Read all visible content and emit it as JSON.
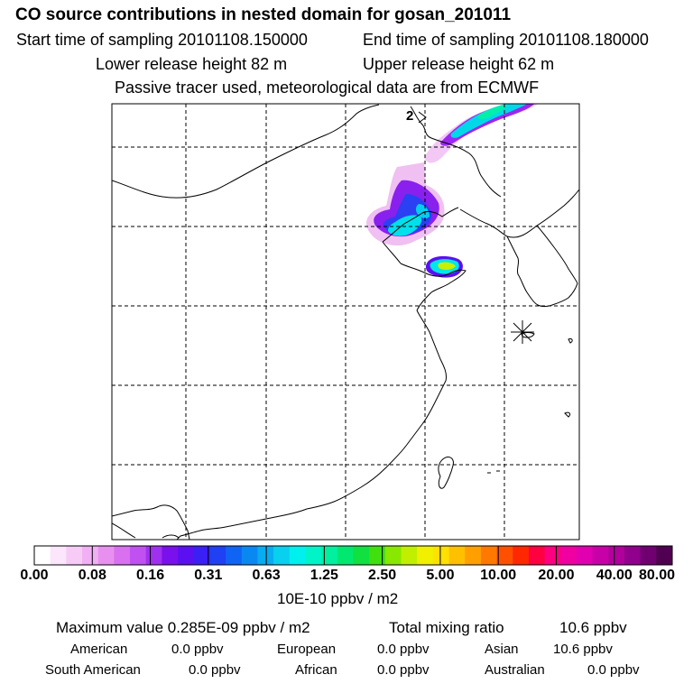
{
  "header": {
    "title": "CO  source contributions in nested domain for gosan_201011",
    "start_label": "Start time of sampling 20101108.150000",
    "end_label": "End time of sampling 20101108.180000",
    "lower_release_label": "Lower release height   82 m",
    "upper_release_label": "Upper release height   62 m",
    "tracer_label": "Passive tracer used, meteorological data are from ECMWF"
  },
  "map": {
    "contour_label": "2",
    "station_marker": "receptor-asterisk-icon"
  },
  "colorbar": {
    "colors": [
      "#ffffff",
      "#fbe6fb",
      "#f6ccf7",
      "#f0b0f3",
      "#e890f0",
      "#d870ef",
      "#c050f0",
      "#a030f0",
      "#7a10ec",
      "#5a10f0",
      "#3a20f4",
      "#2040f4",
      "#1064f4",
      "#0a88f2",
      "#08acf0",
      "#08d0ee",
      "#00f0ee",
      "#00f4c8",
      "#00f0a0",
      "#00e870",
      "#10e040",
      "#40e010",
      "#88e800",
      "#c0f000",
      "#f0f000",
      "#ffe000",
      "#ffc000",
      "#ffa000",
      "#ff7800",
      "#ff5000",
      "#ff2800",
      "#ff0040",
      "#ff0080",
      "#f000a0",
      "#e000b0",
      "#c800a8",
      "#b0009c",
      "#90008c",
      "#700070",
      "#500050"
    ],
    "ticks": [
      "0.00",
      "0.08",
      "0.16",
      "0.31",
      "0.63",
      "1.25",
      "2.50",
      "5.00",
      "10.00",
      "20.00",
      "40.00",
      "80.00"
    ],
    "unit": "10E-10 ppbv / m2"
  },
  "stats": {
    "max_label": "Maximum value  0.285E-09 ppbv / m2",
    "total_label": "Total mixing ratio",
    "total_value": "10.6 ppbv",
    "regions": [
      {
        "name": "American",
        "value": "0.0 ppbv"
      },
      {
        "name": "European",
        "value": "0.0 ppbv"
      },
      {
        "name": "Asian",
        "value": "10.6 ppbv"
      },
      {
        "name": "South American",
        "value": "0.0 ppbv"
      },
      {
        "name": "African",
        "value": "0.0 ppbv"
      },
      {
        "name": "Australian",
        "value": "0.0 ppbv"
      }
    ]
  }
}
